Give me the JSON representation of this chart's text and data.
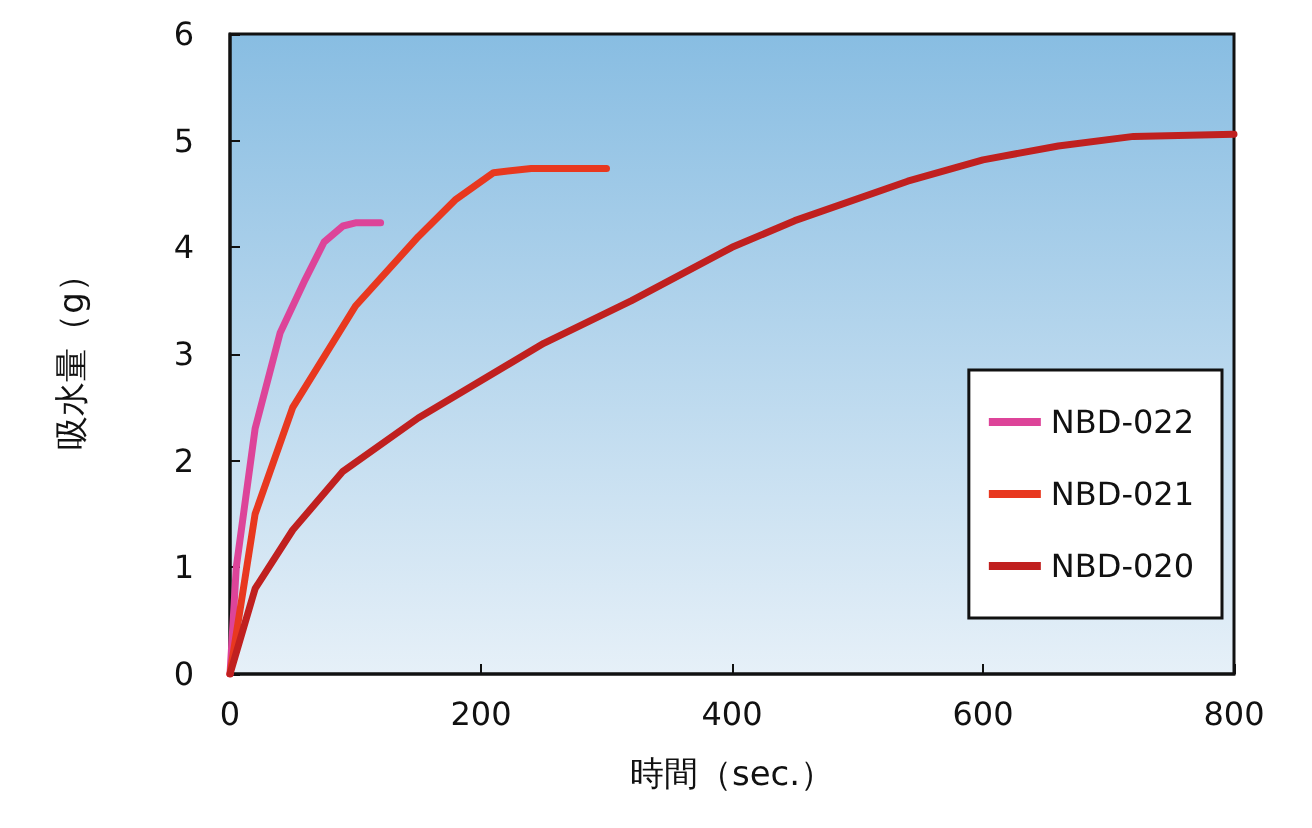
{
  "chart_data": {
    "type": "line",
    "xlabel": "時間（sec.）",
    "ylabel": "吸水量（g）",
    "xlim": [
      0,
      800
    ],
    "xticks": [
      0,
      200,
      400,
      600,
      800
    ],
    "ylim": [
      0,
      6
    ],
    "yticks": [
      0,
      1,
      2,
      3,
      4,
      5,
      6
    ],
    "grid": false,
    "legend": "right",
    "marker": "none",
    "line_style": "solid",
    "series": [
      {
        "name": "NBD-022",
        "color": "#dd4499",
        "x": [
          0,
          5,
          20,
          40,
          60,
          75,
          90,
          100,
          120
        ],
        "values": [
          0,
          1,
          2.3,
          3.2,
          3.7,
          4.05,
          4.2,
          4.23,
          4.23
        ]
      },
      {
        "name": "NBD-021",
        "color": "#e8381f",
        "x": [
          0,
          20,
          50,
          100,
          150,
          180,
          210,
          240,
          300
        ],
        "values": [
          0,
          1.5,
          2.5,
          3.45,
          4.1,
          4.45,
          4.7,
          4.74,
          4.74
        ]
      },
      {
        "name": "NBD-020",
        "color": "#c0201f",
        "x": [
          0,
          20,
          50,
          90,
          150,
          250,
          320,
          400,
          450,
          540,
          600,
          660,
          720,
          800
        ],
        "values": [
          0,
          0.8,
          1.35,
          1.9,
          2.4,
          3.1,
          3.5,
          4.0,
          4.25,
          4.62,
          4.82,
          4.95,
          5.04,
          5.06
        ]
      }
    ]
  }
}
